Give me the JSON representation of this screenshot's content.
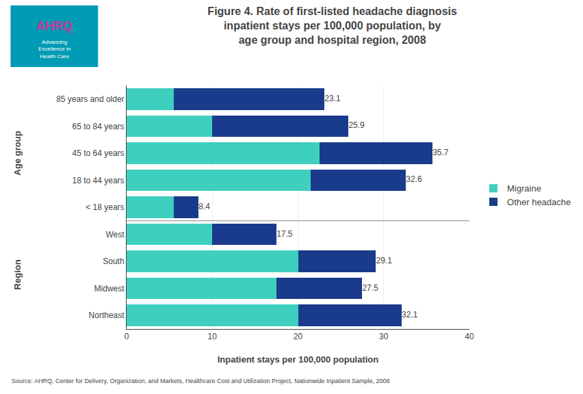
{
  "chart_data": {
    "type": "bar",
    "orientation": "horizontal",
    "stacked": true,
    "title": "Figure 4. Rate of first-listed headache diagnosis\ninpatient stays per 100,000 population, by\nage group and hospital region, 2008",
    "xlabel": "Inpatient stays per 100,000 population",
    "categories": [
      "85 years and older",
      "65 to 84 years",
      "45 to 64 years",
      "18 to 44 years",
      "< 18 years",
      "West",
      "South",
      "Midwest",
      "Northeast"
    ],
    "series": [
      {
        "name": "Migraine",
        "color": "#3ECFBE",
        "values": [
          5.5,
          10.0,
          22.5,
          21.5,
          5.5,
          10.0,
          20.0,
          17.5,
          20.0
        ]
      },
      {
        "name": "Other headache",
        "color": "#1A3B8C",
        "values": [
          17.6,
          15.9,
          13.2,
          11.1,
          2.9,
          7.5,
          9.1,
          10.0,
          12.1
        ]
      }
    ],
    "totals": [
      23.1,
      25.9,
      35.7,
      32.6,
      8.4,
      17.5,
      29.1,
      27.5,
      32.1
    ],
    "groups": [
      {
        "label": "Age group",
        "from": "85 years and older",
        "to": "< 18 years"
      },
      {
        "label": "Region",
        "from": "West",
        "to": "Northeast"
      }
    ],
    "xlim": [
      0,
      40
    ],
    "xticks": [
      0,
      10,
      20,
      30,
      40
    ],
    "grid": true,
    "legend": "right",
    "logo": {
      "text": "AHRQ",
      "subtitle": "Advancing\nExcellence in\nHealth Care",
      "color": "#009BB4"
    },
    "source": "Source: AHRQ, Center for Delivery, Organization, and Markets, Healthcare Cost and Utilization Project, Nationwide Inpatient Sample, 2008"
  }
}
